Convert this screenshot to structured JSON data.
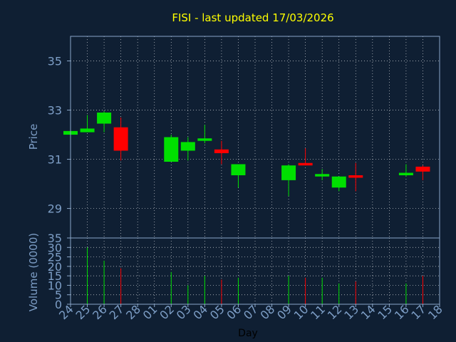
{
  "chart_data": {
    "type": "candlestick",
    "title": "FISI - last updated 17/03/2026",
    "price_axis": {
      "label": "Price",
      "ylim": [
        27.8,
        36
      ],
      "ticks": [
        29,
        31,
        33,
        35
      ]
    },
    "volume_axis": {
      "label": "Volume (0000)",
      "ylim": [
        0,
        35
      ],
      "ticks": [
        0,
        5,
        10,
        15,
        20,
        25,
        30,
        35
      ]
    },
    "xlabel": "Day",
    "categories": [
      "24",
      "25",
      "26",
      "27",
      "28",
      "01",
      "02",
      "03",
      "04",
      "05",
      "06",
      "07",
      "08",
      "09",
      "10",
      "11",
      "12",
      "13",
      "14",
      "15",
      "16",
      "17",
      "18"
    ],
    "candles": [
      {
        "day": "24",
        "open": 32.0,
        "high": 32.15,
        "low": 32.0,
        "close": 32.15,
        "volume": 0
      },
      {
        "day": "25",
        "open": 32.1,
        "high": 32.8,
        "low": 32.1,
        "close": 32.25,
        "volume": 30
      },
      {
        "day": "26",
        "open": 32.45,
        "high": 32.95,
        "low": 32.1,
        "close": 32.9,
        "volume": 23
      },
      {
        "day": "27",
        "open": 32.3,
        "high": 32.7,
        "low": 30.95,
        "close": 31.35,
        "volume": 19
      },
      {
        "day": "02",
        "open": 30.9,
        "high": 32.0,
        "low": 30.9,
        "close": 31.9,
        "volume": 17
      },
      {
        "day": "03",
        "open": 31.35,
        "high": 31.9,
        "low": 30.95,
        "close": 31.7,
        "volume": 10
      },
      {
        "day": "04",
        "open": 31.75,
        "high": 32.4,
        "low": 31.65,
        "close": 31.85,
        "volume": 15
      },
      {
        "day": "05",
        "open": 31.4,
        "high": 31.75,
        "low": 30.8,
        "close": 31.25,
        "volume": 13
      },
      {
        "day": "06",
        "open": 30.35,
        "high": 30.8,
        "low": 29.85,
        "close": 30.8,
        "volume": 14
      },
      {
        "day": "09",
        "open": 30.15,
        "high": 30.8,
        "low": 29.5,
        "close": 30.75,
        "volume": 15
      },
      {
        "day": "10",
        "open": 30.85,
        "high": 31.45,
        "low": 30.75,
        "close": 30.75,
        "volume": 14
      },
      {
        "day": "11",
        "open": 30.3,
        "high": 30.6,
        "low": 30.15,
        "close": 30.4,
        "volume": 14
      },
      {
        "day": "12",
        "open": 29.85,
        "high": 30.3,
        "low": 29.7,
        "close": 30.3,
        "volume": 11
      },
      {
        "day": "13",
        "open": 30.35,
        "high": 30.85,
        "low": 29.7,
        "close": 30.25,
        "volume": 12
      },
      {
        "day": "16",
        "open": 30.35,
        "high": 30.8,
        "low": 30.3,
        "close": 30.45,
        "volume": 11
      },
      {
        "day": "17",
        "open": 30.7,
        "high": 30.75,
        "low": 30.15,
        "close": 30.5,
        "volume": 15
      }
    ],
    "up_color": "#00e000",
    "down_color": "#ff0000",
    "grid": true
  },
  "theme": {
    "background": "#0f1f33",
    "axis_color": "#8aa6c8",
    "grid_color": "#ffffff",
    "title_color": "#ffff00",
    "label_color": "#7d9ec6",
    "day_label_color": "#000000"
  }
}
